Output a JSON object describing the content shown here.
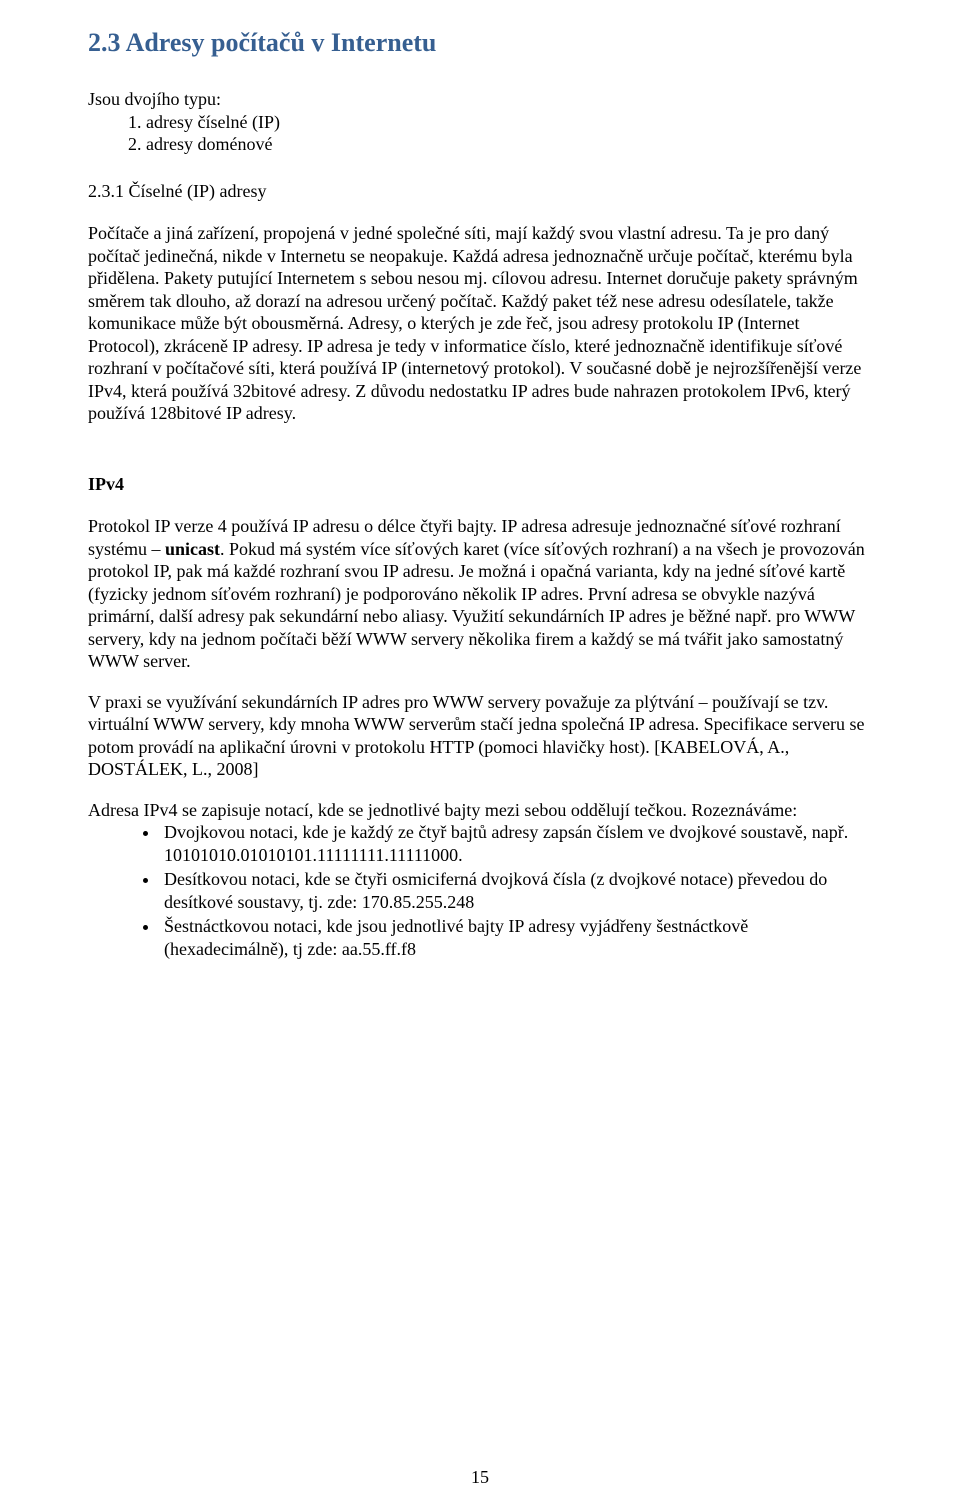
{
  "title": "2.3 Adresy počítačů v Internetu",
  "intro": "Jsou dvojího typu:",
  "types": [
    "adresy číselné (IP)",
    "adresy doménové"
  ],
  "subheading": "2.3.1 Číselné (IP) adresy",
  "para1": "Počítače a jiná zařízení, propojená v jedné společné síti, mají každý svou vlastní adresu. Ta je pro daný počítač jedinečná, nikde v Internetu se neopakuje. Každá adresa jednoznačně určuje počítač, kterému byla přidělena. Pakety putující Internetem s sebou nesou mj. cílovou adresu. Internet doručuje pakety správným směrem tak dlouho, až dorazí na adresou určený počítač. Každý paket též nese adresu odesílatele, takže komunikace může být obousměrná. Adresy, o kterých je zde řeč, jsou adresy protokolu IP (Internet Protocol), zkráceně IP adresy. IP adresa je tedy v informatice číslo, které jednoznačně identifikuje síťové rozhraní v počítačové síti, která používá IP (internetový protokol). V současné době je nejrozšířenější verze IPv4, která používá 32bitové adresy. Z důvodu nedostatku IP adres bude nahrazen protokolem IPv6, který používá 128bitové IP adresy.",
  "ipv4_heading": "IPv4",
  "ipv4_para1_a": "Protokol IP verze 4 používá IP adresu o délce čtyři bajty. IP adresa adresuje jednoznačné síťové rozhraní systému – ",
  "ipv4_para1_bold": "unicast",
  "ipv4_para1_b": ". Pokud má systém více síťových karet (více síťových rozhraní) a na všech je provozován protokol IP, pak má každé rozhraní svou IP adresu. Je možná i opačná varianta, kdy na jedné síťové kartě (fyzicky jednom síťovém rozhraní) je podporováno několik IP adres. První adresa se obvykle nazývá primární, další adresy pak sekundární nebo aliasy. Využití sekundárních IP adres je běžné např. pro WWW servery, kdy na jednom počítači běží WWW servery několika firem a každý se má tvářit jako samostatný WWW server.",
  "ipv4_para2": "V praxi se využívání sekundárních IP adres pro WWW servery považuje za plýtvání – používají se tzv. virtuální WWW servery, kdy mnoha WWW serverům stačí jedna společná IP adresa. Specifikace serveru se potom provádí na aplikační úrovni v protokolu HTTP (pomoci hlavičky host). [KABELOVÁ, A., DOSTÁLEK, L., 2008]",
  "ipv4_para3_intro": "Adresa IPv4 se zapisuje notací, kde se jednotlivé bajty mezi sebou oddělují tečkou. Rozeznáváme:",
  "notations": [
    "Dvojkovou notaci, kde je každý ze čtyř bajtů adresy zapsán číslem ve dvojkové soustavě, např. 10101010.01010101.11111111.11111000.",
    "Desítkovou notaci, kde se čtyři osmiciferná dvojková čísla (z dvojkové notace) převedou do desítkové soustavy, tj. zde: 170.85.255.248",
    "Šestnáctkovou notaci, kde jsou jednotlivé bajty IP adresy vyjádřeny šestnáctkově (hexadecimálně), tj zde: aa.55.ff.f8"
  ],
  "page_number": "15",
  "colors": {
    "heading": "#365f91",
    "text": "#000000",
    "background": "#ffffff"
  },
  "fonts": {
    "body_family": "Times New Roman",
    "body_size_pt": 12,
    "heading_size_pt": 18
  }
}
